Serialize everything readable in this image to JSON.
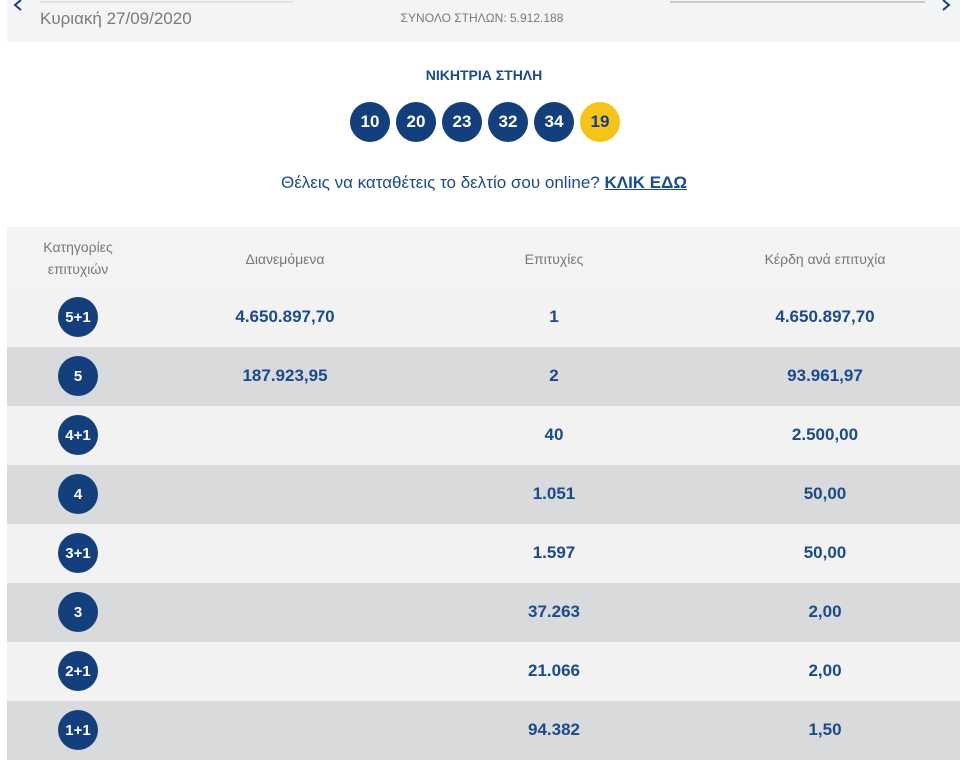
{
  "header": {
    "date": "Κυριακή 27/09/2020",
    "total_columns": "ΣΥΝΟΛΟ ΣΤΗΛΩΝ: 5.912.188"
  },
  "winning_column": {
    "title": "ΝΙΚΗΤΡΙΑ ΣΤΗΛΗ",
    "numbers": [
      "10",
      "20",
      "23",
      "32",
      "34"
    ],
    "bonus": "19"
  },
  "cta": {
    "text": "Θέλεις να καταθέτεις το δελτίο σου online?",
    "link": "ΚΛΙΚ ΕΔΩ"
  },
  "table": {
    "columns": [
      "Κατηγορίες επιτυχιών",
      "Διανεμόμενα",
      "Επιτυχίες",
      "Κέρδη ανά επιτυχία"
    ],
    "rows": [
      {
        "category": "5+1",
        "distributed": "4.650.897,70",
        "winners": "1",
        "prize": "4.650.897,70"
      },
      {
        "category": "5",
        "distributed": "187.923,95",
        "winners": "2",
        "prize": "93.961,97"
      },
      {
        "category": "4+1",
        "winners": "40",
        "prize": "2.500,00"
      },
      {
        "category": "4",
        "winners": "1.051",
        "prize": "50,00"
      },
      {
        "category": "3+1",
        "winners": "1.597",
        "prize": "50,00"
      },
      {
        "category": "3",
        "winners": "37.263",
        "prize": "2,00"
      },
      {
        "category": "2+1",
        "winners": "21.066",
        "prize": "2,00"
      },
      {
        "category": "1+1",
        "winners": "94.382",
        "prize": "1,50"
      }
    ]
  }
}
